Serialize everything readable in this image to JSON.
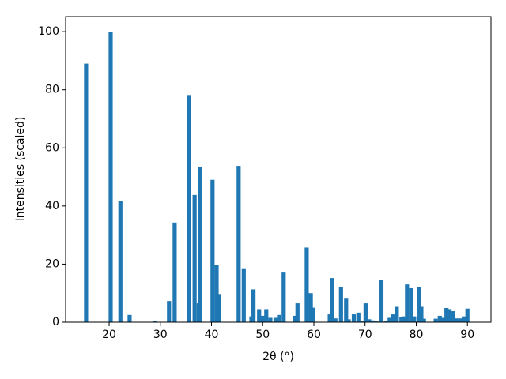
{
  "chart_data": {
    "type": "bar",
    "xlabel": "2θ (°)",
    "ylabel": "Intensities (scaled)",
    "color": "#1f77b4",
    "bar_width": 0.8,
    "x": [
      15.5,
      20.3,
      22.2,
      24.0,
      29.0,
      31.7,
      32.8,
      35.6,
      36.7,
      37.5,
      37.8,
      40.2,
      41.0,
      41.5,
      45.3,
      46.3,
      47.8,
      48.2,
      49.3,
      50.0,
      50.7,
      51.5,
      52.5,
      53.2,
      54.1,
      56.3,
      56.8,
      58.6,
      59.4,
      59.9,
      63.1,
      63.6,
      64.2,
      65.3,
      66.3,
      66.8,
      67.8,
      68.7,
      69.5,
      70.1,
      70.8,
      71.5,
      72.2,
      73.2,
      74.1,
      74.8,
      75.5,
      76.2,
      77.1,
      77.6,
      78.2,
      79.0,
      79.6,
      80.5,
      81.0,
      81.5,
      83.8,
      84.6,
      85.3,
      85.9,
      86.5,
      87.1,
      87.8,
      88.6,
      89.3,
      90.0
    ],
    "values": [
      89,
      100,
      41.7,
      2.5,
      0.3,
      7.3,
      34.3,
      78.2,
      43.8,
      6.5,
      53.4,
      49,
      19.8,
      9.7,
      53.8,
      18.3,
      2,
      11.3,
      4.5,
      2.2,
      4.5,
      1.5,
      1.5,
      2.5,
      17.1,
      2.2,
      6.5,
      25.7,
      10,
      5,
      2.7,
      15.2,
      1.3,
      12,
      8.1,
      1,
      2.7,
      3.3,
      0.5,
      6.5,
      1,
      0.6,
      0.4,
      14.4,
      0.5,
      1.5,
      2.7,
      5.3,
      1.8,
      2,
      13,
      11.7,
      2,
      12,
      5.3,
      1.2,
      1.2,
      2.2,
      1.5,
      4.9,
      4.5,
      3.8,
      1.3,
      1.3,
      2,
      4.7
    ],
    "xlim": [
      11.5,
      94.6
    ],
    "ylim": [
      0,
      105.2
    ],
    "xticks": [
      20,
      30,
      40,
      50,
      60,
      70,
      80,
      90
    ],
    "yticks": [
      0,
      20,
      40,
      60,
      80,
      100
    ]
  }
}
